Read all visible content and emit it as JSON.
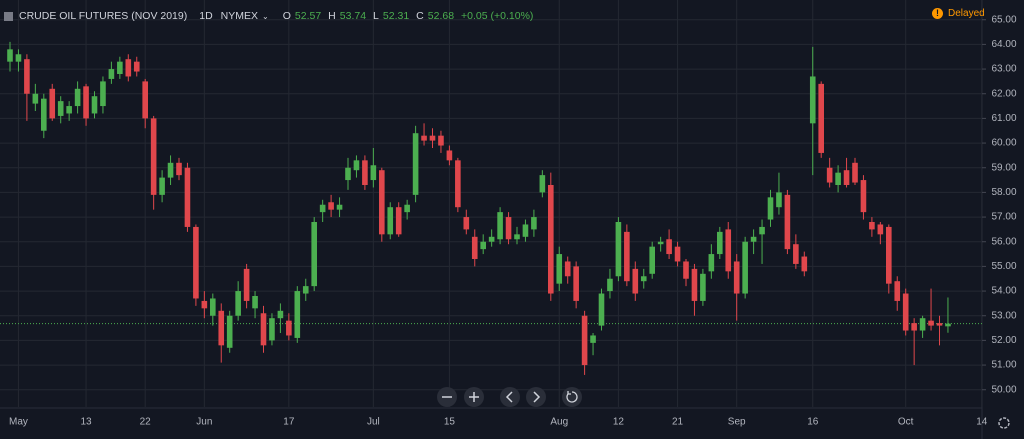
{
  "header": {
    "symbol": "CRUDE OIL FUTURES (NOV 2019)",
    "interval": "1D",
    "exchange": "NYMEX",
    "open_label": "O",
    "open": 52.57,
    "high_label": "H",
    "high": 53.74,
    "low_label": "L",
    "low": 52.31,
    "close_label": "C",
    "close": 52.68,
    "change": "+0.05 (+0.10%)",
    "status": "Delayed"
  },
  "chart_data": {
    "type": "candlestick",
    "up_color": "#4caf50",
    "down_color": "#e0474c",
    "grid": true,
    "categories": [
      null,
      "May",
      null,
      null,
      null,
      null,
      null,
      null,
      null,
      "13",
      null,
      null,
      null,
      null,
      null,
      null,
      "22",
      null,
      null,
      null,
      null,
      null,
      null,
      "Jun",
      null,
      null,
      null,
      null,
      null,
      null,
      null,
      null,
      null,
      "17",
      null,
      null,
      null,
      null,
      null,
      null,
      null,
      null,
      null,
      "Jul",
      null,
      null,
      null,
      null,
      null,
      null,
      null,
      null,
      "15",
      null,
      null,
      null,
      null,
      null,
      null,
      null,
      null,
      null,
      null,
      null,
      null,
      "Aug",
      null,
      null,
      null,
      null,
      null,
      null,
      "12",
      null,
      null,
      null,
      null,
      null,
      null,
      "21",
      null,
      null,
      null,
      null,
      null,
      null,
      "Sep",
      null,
      null,
      null,
      null,
      null,
      null,
      null,
      null,
      "16",
      null,
      null,
      null,
      null,
      null,
      null,
      null,
      null,
      null,
      null,
      "Oct",
      null,
      null,
      null,
      null,
      null,
      null,
      null,
      null,
      "14"
    ],
    "open": [
      63.3,
      63.3,
      63.4,
      61.6,
      60.5,
      62.2,
      61.1,
      61.2,
      61.5,
      62.3,
      61.2,
      61.5,
      62.6,
      62.8,
      63.4,
      63.3,
      62.5,
      61.0,
      57.9,
      58.6,
      59.2,
      59.0,
      56.6,
      53.6,
      53.0,
      53.2,
      51.7,
      53.0,
      54.9,
      53.3,
      53.1,
      52.0,
      52.9,
      52.8,
      52.1,
      53.9,
      54.2,
      57.2,
      57.6,
      57.3,
      58.5,
      58.9,
      59.3,
      58.5,
      58.9,
      56.3,
      57.4,
      57.2,
      57.9,
      60.3,
      60.3,
      60.3,
      59.7,
      59.3,
      57.0,
      56.2,
      55.7,
      56.0,
      56.1,
      57.0,
      56.1,
      56.2,
      56.5,
      58.0,
      58.3,
      54.3,
      55.2,
      55.0,
      53.0,
      51.9,
      52.6,
      54.0,
      54.6,
      56.4,
      54.9,
      54.4,
      54.7,
      55.9,
      56.1,
      55.8,
      55.2,
      54.9,
      53.6,
      54.8,
      55.5,
      56.5,
      55.2,
      53.9,
      56.0,
      56.3,
      56.9,
      57.4,
      57.9,
      55.9,
      55.4,
      60.8,
      62.4,
      59.0,
      58.3,
      58.9,
      59.2,
      58.5,
      56.8,
      56.7,
      56.6,
      54.4,
      53.9,
      52.7,
      52.4,
      52.8,
      52.7,
      52.57,
      null,
      null,
      null,
      null
    ],
    "high": [
      64.1,
      63.8,
      63.6,
      62.4,
      62.0,
      62.4,
      61.9,
      61.7,
      62.5,
      62.4,
      62.1,
      62.7,
      63.3,
      63.5,
      63.6,
      63.5,
      62.6,
      61.1,
      58.9,
      59.5,
      59.4,
      59.2,
      56.7,
      54.0,
      53.9,
      53.5,
      53.2,
      54.4,
      55.1,
      54.0,
      53.4,
      53.1,
      53.5,
      53.1,
      54.2,
      54.5,
      57.0,
      57.7,
      57.9,
      57.8,
      59.4,
      59.5,
      59.5,
      59.8,
      59.0,
      57.6,
      57.6,
      57.7,
      60.7,
      60.8,
      60.6,
      60.5,
      59.9,
      59.4,
      57.3,
      56.5,
      56.3,
      56.5,
      57.4,
      57.2,
      56.6,
      56.9,
      57.3,
      58.9,
      58.8,
      55.8,
      55.4,
      55.2,
      53.2,
      52.3,
      54.1,
      54.9,
      57.0,
      56.7,
      55.2,
      54.9,
      56.0,
      56.2,
      56.5,
      56.0,
      55.3,
      55.1,
      54.9,
      55.9,
      56.6,
      56.8,
      55.5,
      56.2,
      56.5,
      56.9,
      58.1,
      58.8,
      58.1,
      56.3,
      55.6,
      63.9,
      62.5,
      59.4,
      59.1,
      59.4,
      59.4,
      58.7,
      57.0,
      56.8,
      56.7,
      54.6,
      54.1,
      52.9,
      53.0,
      54.1,
      53.0,
      53.74,
      null,
      null,
      null,
      null
    ],
    "low": [
      62.9,
      62.9,
      60.9,
      61.3,
      60.2,
      60.9,
      60.8,
      60.9,
      61.2,
      60.7,
      61.0,
      61.2,
      62.4,
      62.6,
      62.5,
      62.7,
      60.6,
      57.3,
      57.6,
      58.3,
      58.5,
      56.4,
      53.4,
      52.9,
      52.6,
      51.1,
      51.5,
      52.8,
      53.3,
      52.9,
      51.5,
      51.8,
      52.3,
      52.0,
      51.9,
      53.6,
      54.0,
      56.8,
      57.0,
      57.0,
      58.1,
      58.6,
      58.1,
      58.2,
      56.0,
      56.1,
      56.2,
      56.9,
      57.6,
      59.9,
      59.8,
      59.6,
      59.1,
      57.2,
      56.3,
      55.0,
      55.5,
      55.8,
      55.9,
      55.9,
      55.9,
      56.0,
      56.2,
      57.8,
      53.6,
      54.0,
      54.3,
      53.3,
      50.6,
      51.4,
      52.4,
      53.7,
      54.4,
      54.2,
      53.6,
      54.1,
      54.5,
      55.6,
      55.3,
      55.0,
      54.2,
      53.0,
      53.4,
      54.5,
      55.3,
      54.5,
      52.8,
      53.7,
      55.5,
      55.1,
      56.6,
      57.1,
      55.5,
      54.9,
      54.6,
      58.7,
      59.4,
      58.2,
      58.0,
      58.2,
      58.3,
      56.9,
      56.2,
      55.9,
      53.9,
      53.2,
      52.2,
      51.0,
      52.1,
      52.4,
      51.8,
      52.31,
      null,
      null,
      null,
      null
    ],
    "close": [
      63.8,
      63.6,
      62.0,
      62.0,
      61.8,
      61.0,
      61.7,
      61.5,
      62.2,
      61.0,
      61.9,
      62.5,
      63.0,
      63.3,
      62.7,
      62.9,
      61.0,
      57.9,
      58.6,
      59.2,
      58.7,
      56.6,
      53.7,
      53.3,
      53.7,
      51.8,
      53.0,
      54.0,
      53.6,
      53.8,
      51.8,
      52.9,
      53.2,
      52.2,
      54.0,
      54.2,
      56.8,
      57.5,
      57.3,
      57.5,
      59.0,
      59.3,
      58.3,
      59.1,
      56.3,
      57.4,
      56.3,
      57.5,
      60.4,
      60.1,
      60.1,
      59.9,
      59.3,
      57.4,
      56.5,
      55.3,
      56.0,
      56.2,
      57.2,
      56.1,
      56.3,
      56.7,
      57.0,
      58.7,
      53.9,
      55.5,
      54.6,
      53.6,
      51.0,
      52.2,
      53.9,
      54.5,
      56.8,
      54.4,
      53.9,
      54.6,
      55.8,
      56.0,
      55.5,
      55.2,
      54.5,
      53.6,
      54.7,
      55.5,
      56.4,
      54.8,
      53.9,
      56.0,
      56.2,
      56.6,
      57.8,
      58.0,
      55.7,
      55.1,
      54.8,
      62.7,
      59.6,
      58.4,
      58.8,
      58.3,
      58.4,
      57.2,
      56.5,
      56.3,
      54.3,
      53.6,
      52.4,
      52.4,
      52.9,
      52.6,
      52.6,
      52.68,
      null,
      null,
      null,
      null
    ],
    "ylim": [
      49.3,
      65.8
    ],
    "yticks": [
      {
        "value": 50,
        "label": "50.00"
      },
      {
        "value": 51,
        "label": "51.00"
      },
      {
        "value": 52,
        "label": "52.00"
      },
      {
        "value": 53,
        "label": "53.00"
      },
      {
        "value": 54,
        "label": "54.00"
      },
      {
        "value": 55,
        "label": "55.00"
      },
      {
        "value": 56,
        "label": "56.00"
      },
      {
        "value": 57,
        "label": "57.00"
      },
      {
        "value": 58,
        "label": "58.00"
      },
      {
        "value": 59,
        "label": "59.00"
      },
      {
        "value": 60,
        "label": "60.00"
      },
      {
        "value": 61,
        "label": "61.00"
      },
      {
        "value": 62,
        "label": "62.00"
      },
      {
        "value": 63,
        "label": "63.00"
      },
      {
        "value": 64,
        "label": "64.00"
      },
      {
        "value": 65,
        "label": "65.00"
      }
    ]
  }
}
